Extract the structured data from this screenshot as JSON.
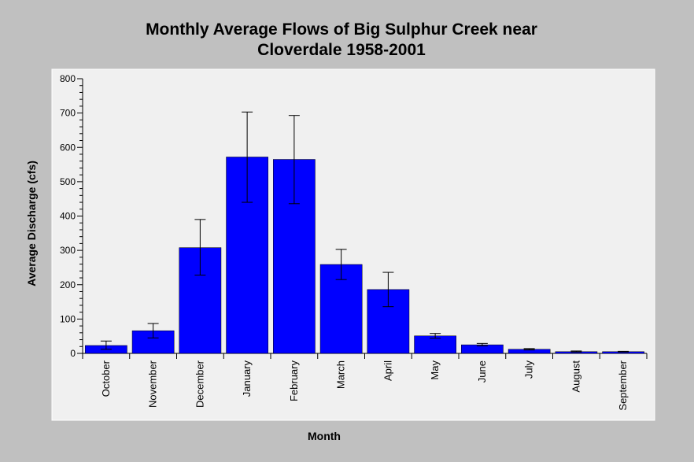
{
  "chart_data": {
    "type": "bar",
    "title_line1": "Monthly Average Flows of Big Sulphur Creek near",
    "title_line2": "Cloverdale 1958-2001",
    "xlabel": "Month",
    "ylabel": "Average Discharge (cfs)",
    "ylim": [
      0,
      800
    ],
    "yticks": [
      "0",
      "100",
      "200",
      "300",
      "400",
      "500",
      "600",
      "700",
      "800"
    ],
    "categories": [
      "October",
      "November",
      "December",
      "January",
      "February",
      "March",
      "April",
      "May",
      "June",
      "July",
      "August",
      "September"
    ],
    "values": [
      23,
      66,
      308,
      572,
      565,
      259,
      186,
      51,
      25,
      12,
      5,
      5
    ],
    "error_low": [
      12,
      45,
      228,
      440,
      436,
      215,
      136,
      44,
      22,
      10,
      4,
      4
    ],
    "error_high": [
      36,
      87,
      390,
      703,
      693,
      303,
      236,
      58,
      29,
      14,
      7,
      6
    ],
    "grid": false,
    "legend": "none",
    "colors": {
      "bar": "#0000ff",
      "plot_background": "#f0f0f0",
      "page_background": "#c0c0c0",
      "axis": "#000000"
    }
  }
}
